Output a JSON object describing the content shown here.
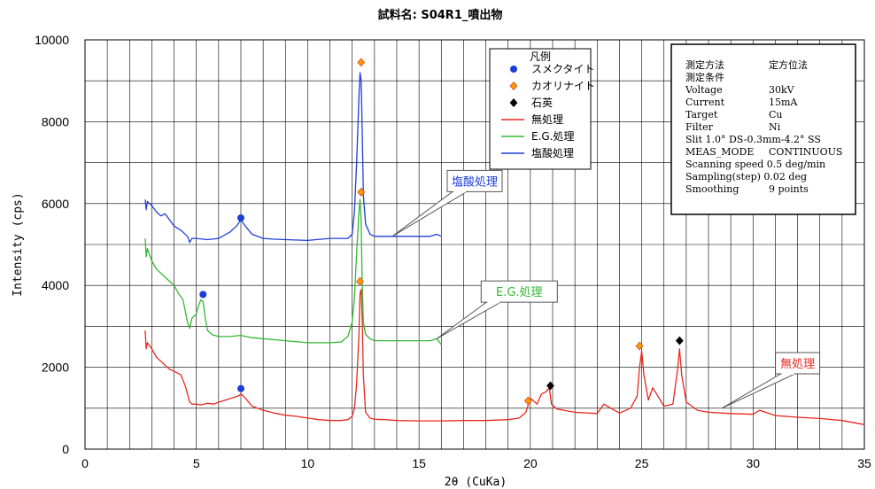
{
  "chart_data": {
    "type": "line",
    "title": "試料名: S04R1_噴出物",
    "xlabel": "2θ (CuKa)",
    "ylabel": "Intensity (cps)",
    "xlim": [
      0,
      35
    ],
    "ylim": [
      0,
      10000
    ],
    "x_ticks": [
      "0",
      "5",
      "10",
      "15",
      "20",
      "25",
      "30",
      "35"
    ],
    "y_ticks": [
      "0",
      "2000",
      "4000",
      "6000",
      "8000",
      "10000"
    ],
    "grid": true,
    "legend_position": "top-right",
    "legend": {
      "title": "凡例",
      "entries": [
        {
          "label": "スメクタイト",
          "marker": "circle",
          "color": "#1a3fd6"
        },
        {
          "label": "カオリナイト",
          "marker": "diamond",
          "color": "#ff9900"
        },
        {
          "label": "石英",
          "marker": "diamond",
          "color": "#000000"
        },
        {
          "label": "無処理",
          "line": true,
          "color": "#e8281e"
        },
        {
          "label": "E.G.処理",
          "line": true,
          "color": "#33b833"
        },
        {
          "label": "塩酸処理",
          "line": true,
          "color": "#1f3fd9"
        }
      ]
    },
    "series": [
      {
        "name": "無処理",
        "color": "#e8281e",
        "x": [
          2.7,
          2.75,
          2.8,
          3.0,
          3.2,
          3.4,
          3.6,
          3.8,
          4.0,
          4.3,
          4.5,
          4.6,
          4.7,
          4.8,
          5.0,
          5.2,
          5.5,
          5.8,
          6.0,
          6.3,
          6.6,
          6.9,
          7.0,
          7.2,
          7.5,
          8.0,
          8.5,
          9.0,
          9.5,
          10,
          10.5,
          11,
          11.5,
          11.8,
          12.0,
          12.1,
          12.2,
          12.3,
          12.35,
          12.4,
          12.45,
          12.5,
          12.6,
          12.8,
          13.0,
          13.5,
          14,
          15,
          16,
          17,
          18,
          19,
          19.5,
          19.8,
          20.0,
          20.3,
          20.5,
          20.7,
          20.85,
          20.95,
          21.2,
          21.5,
          22,
          23,
          23.3,
          24,
          24.5,
          24.8,
          24.9,
          25.0,
          25.1,
          25.3,
          25.5,
          26,
          26.4,
          26.6,
          26.7,
          26.8,
          27.0,
          27.5,
          28,
          29,
          30,
          30.3,
          31,
          32,
          33,
          34,
          35
        ],
        "y": [
          2900,
          2450,
          2600,
          2450,
          2250,
          2150,
          2050,
          1950,
          1900,
          1820,
          1550,
          1350,
          1150,
          1100,
          1100,
          1080,
          1120,
          1100,
          1150,
          1200,
          1250,
          1300,
          1350,
          1250,
          1050,
          950,
          880,
          830,
          800,
          760,
          720,
          700,
          700,
          720,
          800,
          1000,
          1600,
          2800,
          3800,
          3900,
          3200,
          1800,
          900,
          760,
          730,
          720,
          700,
          690,
          690,
          700,
          700,
          720,
          760,
          900,
          1250,
          1100,
          1350,
          1400,
          1500,
          1100,
          980,
          950,
          900,
          870,
          1100,
          880,
          1000,
          1300,
          2000,
          2400,
          1800,
          1200,
          1500,
          1050,
          1100,
          1900,
          2450,
          1800,
          1150,
          950,
          900,
          870,
          850,
          950,
          820,
          780,
          750,
          700,
          600
        ]
      },
      {
        "name": "E.G.処理",
        "color": "#33b833",
        "x": [
          2.7,
          2.75,
          2.8,
          3.0,
          3.2,
          3.4,
          3.6,
          3.8,
          4.0,
          4.2,
          4.4,
          4.6,
          4.7,
          4.8,
          5.0,
          5.1,
          5.2,
          5.3,
          5.4,
          5.5,
          5.7,
          6.0,
          6.5,
          7.0,
          7.5,
          8.0,
          9.0,
          10,
          11,
          11.5,
          11.8,
          12.0,
          12.1,
          12.2,
          12.3,
          12.35,
          12.4,
          12.45,
          12.5,
          12.6,
          12.8,
          13,
          14,
          15,
          15.5,
          15.8,
          16.0
        ],
        "y": [
          5150,
          4700,
          4900,
          4600,
          4400,
          4300,
          4200,
          4100,
          4000,
          3800,
          3650,
          3100,
          2950,
          3200,
          3300,
          3500,
          3650,
          3600,
          3200,
          2900,
          2800,
          2750,
          2750,
          2780,
          2720,
          2700,
          2650,
          2600,
          2600,
          2620,
          2750,
          3100,
          3700,
          4800,
          5800,
          6100,
          5600,
          4000,
          3100,
          2800,
          2700,
          2650,
          2650,
          2650,
          2650,
          2700,
          2550
        ]
      },
      {
        "name": "塩酸処理",
        "color": "#1f3fd9",
        "x": [
          2.7,
          2.75,
          2.8,
          3.0,
          3.2,
          3.4,
          3.6,
          3.8,
          4.0,
          4.3,
          4.6,
          4.7,
          4.8,
          5.0,
          5.5,
          6.0,
          6.5,
          6.8,
          7.0,
          7.2,
          7.5,
          8.0,
          8.5,
          9,
          10,
          11,
          11.5,
          11.8,
          12.0,
          12.1,
          12.2,
          12.3,
          12.35,
          12.4,
          12.45,
          12.5,
          12.6,
          12.8,
          13,
          14,
          15,
          15.5,
          15.8,
          16.0
        ],
        "y": [
          6100,
          5850,
          6050,
          5950,
          5800,
          5700,
          5750,
          5600,
          5450,
          5350,
          5200,
          5050,
          5150,
          5150,
          5120,
          5150,
          5300,
          5450,
          5600,
          5450,
          5250,
          5150,
          5130,
          5120,
          5100,
          5150,
          5150,
          5150,
          5250,
          5800,
          7000,
          8600,
          9200,
          9000,
          7800,
          6200,
          5500,
          5250,
          5200,
          5200,
          5200,
          5200,
          5250,
          5200
        ]
      }
    ],
    "peak_markers": [
      {
        "x": 7.0,
        "y": 5650,
        "shape": "circle",
        "color": "#1a3fd6"
      },
      {
        "x": 5.3,
        "y": 3780,
        "shape": "circle",
        "color": "#1a3fd6"
      },
      {
        "x": 7.0,
        "y": 1480,
        "shape": "circle",
        "color": "#1a3fd6"
      },
      {
        "x": 12.4,
        "y": 9450,
        "shape": "diamond",
        "color": "#ff9900"
      },
      {
        "x": 12.4,
        "y": 6280,
        "shape": "diamond",
        "color": "#ff9900"
      },
      {
        "x": 12.35,
        "y": 4100,
        "shape": "diamond",
        "color": "#ff9900"
      },
      {
        "x": 19.9,
        "y": 1180,
        "shape": "diamond",
        "color": "#ff9900"
      },
      {
        "x": 24.9,
        "y": 2520,
        "shape": "diamond",
        "color": "#ff9900"
      },
      {
        "x": 20.9,
        "y": 1550,
        "shape": "diamond",
        "color": "#000000"
      },
      {
        "x": 26.7,
        "y": 2650,
        "shape": "diamond",
        "color": "#000000"
      }
    ],
    "callouts": [
      {
        "text": "塩酸処理",
        "color": "#1f3fd9",
        "x": 17.5,
        "y": 6550,
        "point_x": 13.8,
        "point_y": 5200
      },
      {
        "text": "E.G.処理",
        "color": "#33b833",
        "x": 19.5,
        "y": 3850,
        "point_x": 15.8,
        "point_y": 2700
      },
      {
        "text": "無処理",
        "color": "#e8281e",
        "x": 32.0,
        "y": 2100,
        "point_x": 28.6,
        "point_y": 1000
      }
    ]
  },
  "info_box": {
    "lines": [
      [
        "測定方法",
        "定方位法"
      ],
      [
        "測定条件",
        ""
      ],
      [
        "Voltage",
        "30kV"
      ],
      [
        "Current",
        "15mA"
      ],
      [
        "Target",
        "Cu"
      ],
      [
        "Filter",
        "Ni"
      ],
      [
        "Slit  1.0° DS-0.3mm-4.2° SS",
        ""
      ],
      [
        "MEAS_MODE",
        "CONTINUOUS"
      ],
      [
        "Scanning speed  0.5 deg/min",
        ""
      ],
      [
        "Sampling(step)  0.02 deg",
        ""
      ],
      [
        "Smoothing",
        "9 points"
      ]
    ]
  }
}
